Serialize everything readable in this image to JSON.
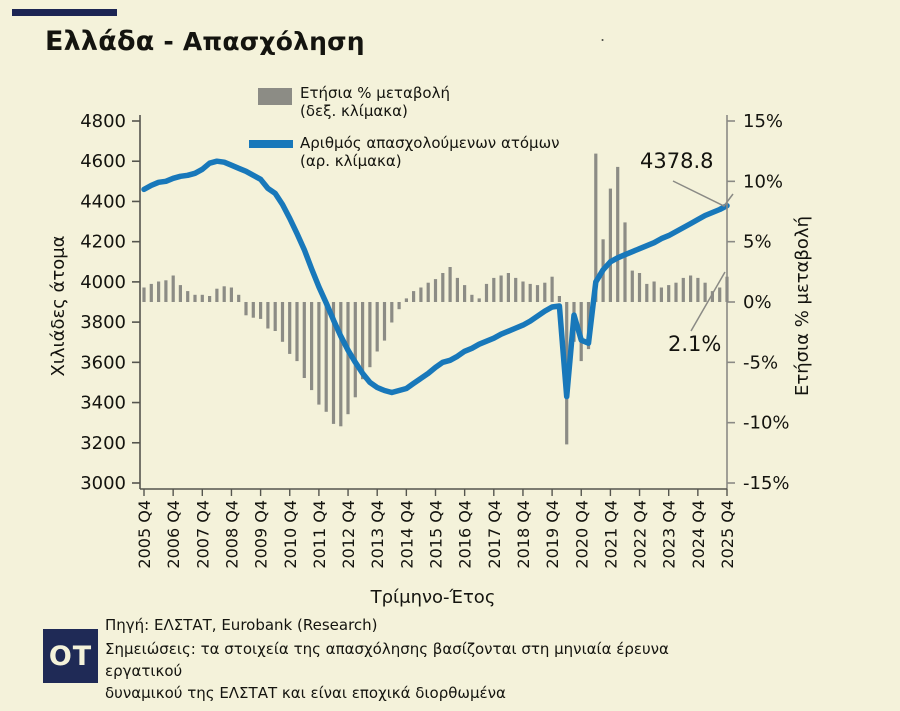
{
  "header": {
    "title_primary": "Ελλάδα",
    "title_secondary": " - Απασχόληση",
    "stray_dot": "."
  },
  "legend": {
    "bars_label": "Ετήσια % μεταβολή",
    "bars_sublabel": "(δεξ. κλίμακα)",
    "line_label": "Αριθμός απασχολούμενων ατόμων",
    "line_sublabel": "(αρ. κλίμακα)"
  },
  "annotations": {
    "line_end_value": "4378.8",
    "bar_end_value": "2.1%"
  },
  "footer": {
    "source": "Πηγή: ΕΛΣΤΑΤ, Eurobank (Research)",
    "notes_line1": "Σημειώσεις: τα στοιχεία της απασχόλησης βασίζονται στη μηνιαία έρευνα εργατικού",
    "notes_line2": "δυναμικού της ΕΛΣΤΑΤ και είναι εποχικά διορθωμένα",
    "logo_text": "OT"
  },
  "colors": {
    "background": "#f4f2da",
    "navy": "#1c2553",
    "logo_navy": "#1f2a56",
    "line_blue": "#1878ba",
    "bar_gray": "#8c8c85",
    "axis_dark": "#55554e",
    "axis_light": "#8a8a85",
    "text": "#14140f",
    "leader": "#8a8a85"
  },
  "chart_data": {
    "type": "line+bar",
    "title": "Ελλάδα - Απασχόληση",
    "xlabel": "Τρίμηνο-Έτος",
    "left_axis": {
      "label": "Χιλιάδες άτομα",
      "range": [
        3000,
        4800
      ],
      "ticks": [
        4800,
        4600,
        4400,
        4200,
        4000,
        3800,
        3600,
        3400,
        3200,
        3000
      ]
    },
    "right_axis": {
      "label": "Ετήσια % μεταβολή",
      "range": [
        -15,
        15
      ],
      "tick_values": [
        15,
        10,
        5,
        0,
        -5,
        -10,
        -15
      ],
      "tick_labels": [
        "15%",
        "10%",
        "5%",
        "0%",
        "-5%",
        "-10%",
        "-15%"
      ]
    },
    "x_tick_labels": [
      "2005 Q4",
      "2006 Q4",
      "2007 Q4",
      "2008 Q4",
      "2009 Q4",
      "2010 Q4",
      "2011 Q4",
      "2012 Q4",
      "2013 Q4",
      "2014 Q4",
      "2015 Q4",
      "2016 Q4",
      "2017 Q4",
      "2018 Q4",
      "2019 Q4",
      "2020 Q4",
      "2021 Q4",
      "2022 Q4",
      "2023 Q4",
      "2024 Q4",
      "2025 Q4"
    ],
    "quarters": [
      "2005 Q4",
      "2006 Q1",
      "2006 Q2",
      "2006 Q3",
      "2006 Q4",
      "2007 Q1",
      "2007 Q2",
      "2007 Q3",
      "2007 Q4",
      "2008 Q1",
      "2008 Q2",
      "2008 Q3",
      "2008 Q4",
      "2009 Q1",
      "2009 Q2",
      "2009 Q3",
      "2009 Q4",
      "2010 Q1",
      "2010 Q2",
      "2010 Q3",
      "2010 Q4",
      "2011 Q1",
      "2011 Q2",
      "2011 Q3",
      "2011 Q4",
      "2012 Q1",
      "2012 Q2",
      "2012 Q3",
      "2012 Q4",
      "2013 Q1",
      "2013 Q2",
      "2013 Q3",
      "2013 Q4",
      "2014 Q1",
      "2014 Q2",
      "2014 Q3",
      "2014 Q4",
      "2015 Q1",
      "2015 Q2",
      "2015 Q3",
      "2015 Q4",
      "2016 Q1",
      "2016 Q2",
      "2016 Q3",
      "2016 Q4",
      "2017 Q1",
      "2017 Q2",
      "2017 Q3",
      "2017 Q4",
      "2018 Q1",
      "2018 Q2",
      "2018 Q3",
      "2018 Q4",
      "2019 Q1",
      "2019 Q2",
      "2019 Q3",
      "2019 Q4",
      "2020 Q1",
      "2020 Q2",
      "2020 Q3",
      "2020 Q4",
      "2021 Q1",
      "2021 Q2",
      "2021 Q3",
      "2021 Q4",
      "2022 Q1",
      "2022 Q2",
      "2022 Q3",
      "2022 Q4",
      "2023 Q1",
      "2023 Q2",
      "2023 Q3",
      "2023 Q4",
      "2024 Q1",
      "2024 Q2",
      "2024 Q3",
      "2024 Q4",
      "2025 Q1",
      "2025 Q2",
      "2025 Q3",
      "2025 Q4"
    ],
    "series": [
      {
        "name": "Αριθμός απασχολούμενων ατόμων",
        "type": "line",
        "axis": "left",
        "values": [
          4460,
          4480,
          4495,
          4500,
          4515,
          4525,
          4530,
          4540,
          4560,
          4590,
          4600,
          4595,
          4580,
          4565,
          4550,
          4530,
          4510,
          4465,
          4440,
          4385,
          4315,
          4240,
          4160,
          4065,
          3975,
          3895,
          3810,
          3730,
          3660,
          3600,
          3545,
          3500,
          3475,
          3460,
          3450,
          3460,
          3470,
          3495,
          3520,
          3545,
          3575,
          3600,
          3610,
          3630,
          3655,
          3670,
          3690,
          3705,
          3720,
          3740,
          3755,
          3770,
          3785,
          3805,
          3830,
          3855,
          3875,
          3880,
          3430,
          3835,
          3710,
          3695,
          4000,
          4060,
          4100,
          4120,
          4135,
          4150,
          4165,
          4180,
          4195,
          4215,
          4230,
          4250,
          4270,
          4290,
          4310,
          4330,
          4345,
          4360,
          4378.8
        ]
      },
      {
        "name": "Ετήσια % μεταβολή",
        "type": "bar",
        "axis": "right",
        "values": [
          1.2,
          1.5,
          1.7,
          1.8,
          2.2,
          1.4,
          0.9,
          0.6,
          0.6,
          0.5,
          1.1,
          1.3,
          1.2,
          0.6,
          -1.1,
          -1.3,
          -1.4,
          -2.2,
          -2.4,
          -3.3,
          -4.3,
          -4.9,
          -6.3,
          -7.3,
          -8.5,
          -9.1,
          -10.1,
          -10.3,
          -9.3,
          -7.9,
          -6.4,
          -5.4,
          -4.1,
          -3.2,
          -1.7,
          -0.6,
          0.3,
          0.9,
          1.2,
          1.6,
          1.9,
          2.4,
          2.9,
          2.0,
          1.4,
          0.6,
          0.3,
          1.5,
          2.0,
          2.2,
          2.4,
          2.0,
          1.7,
          1.5,
          1.4,
          1.6,
          2.1,
          0.5,
          -11.8,
          -3.3,
          -4.9,
          -3.9,
          12.3,
          5.2,
          9.4,
          11.2,
          6.6,
          2.6,
          2.4,
          1.5,
          1.7,
          1.2,
          1.4,
          1.6,
          2.0,
          2.2,
          2.0,
          1.6,
          0.9,
          1.2,
          2.1
        ]
      }
    ]
  }
}
